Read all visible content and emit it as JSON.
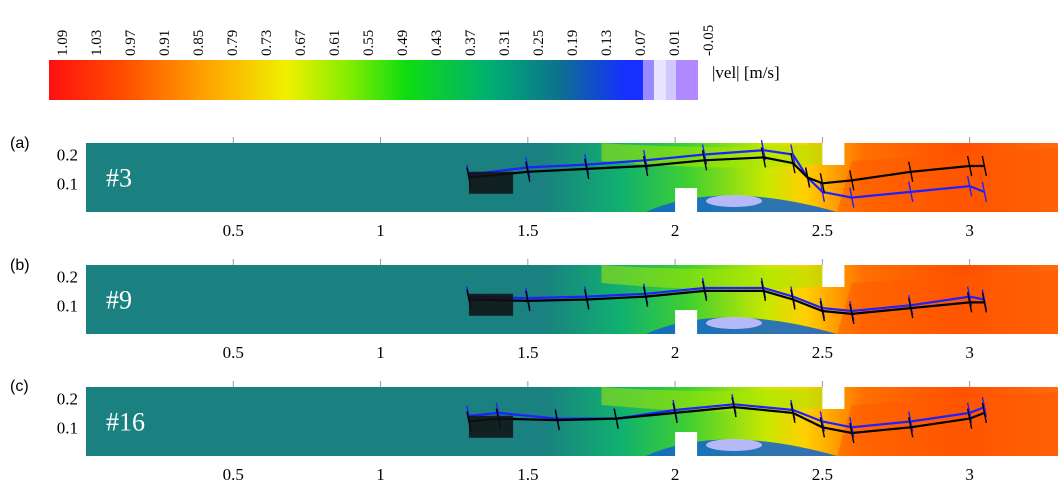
{
  "colorbar": {
    "ticks": [
      "1.09",
      "1.03",
      "0.97",
      "0.91",
      "0.85",
      "0.79",
      "0.73",
      "0.67",
      "0.61",
      "0.55",
      "0.49",
      "0.43",
      "0.37",
      "0.31",
      "0.25",
      "0.19",
      "0.13",
      "0.07",
      "0.01",
      "-0.05"
    ],
    "label": "|vel| [m/s]"
  },
  "chart_data": [
    {
      "type": "heatmap",
      "panel": "(a)",
      "case": "#3",
      "x_ticks": [
        "0.5",
        "1",
        "1.5",
        "2",
        "2.5",
        "3"
      ],
      "y_ticks": [
        "0.2",
        "0.1"
      ],
      "xlim": [
        0,
        3.3
      ],
      "ylim": [
        0,
        0.24
      ],
      "series": [
        {
          "x": [
            1.3,
            1.5,
            1.7,
            1.9,
            2.1,
            2.3,
            2.4,
            2.45,
            2.5,
            2.6,
            2.8,
            3.0,
            3.05
          ],
          "y": [
            0.13,
            0.155,
            0.165,
            0.18,
            0.2,
            0.215,
            0.2,
            0.12,
            0.07,
            0.05,
            0.07,
            0.09,
            0.07
          ]
        },
        {
          "x": [
            1.3,
            1.5,
            1.7,
            1.9,
            2.1,
            2.3,
            2.4,
            2.45,
            2.5,
            2.6,
            2.8,
            3.0,
            3.05
          ],
          "y": [
            0.12,
            0.14,
            0.15,
            0.16,
            0.18,
            0.19,
            0.17,
            0.12,
            0.1,
            0.11,
            0.14,
            0.16,
            0.16
          ]
        }
      ]
    },
    {
      "type": "heatmap",
      "panel": "(b)",
      "case": "#9",
      "x_ticks": [
        "0.5",
        "1",
        "1.5",
        "2",
        "2.5",
        "3"
      ],
      "y_ticks": [
        "0.2",
        "0.1"
      ],
      "xlim": [
        0,
        3.3
      ],
      "ylim": [
        0,
        0.24
      ],
      "series": [
        {
          "x": [
            1.3,
            1.5,
            1.7,
            1.9,
            2.1,
            2.3,
            2.4,
            2.5,
            2.6,
            2.8,
            3.0,
            3.05
          ],
          "y": [
            0.13,
            0.125,
            0.13,
            0.14,
            0.16,
            0.16,
            0.13,
            0.09,
            0.08,
            0.1,
            0.13,
            0.12
          ]
        },
        {
          "x": [
            1.3,
            1.5,
            1.7,
            1.9,
            2.1,
            2.3,
            2.4,
            2.5,
            2.6,
            2.8,
            3.0,
            3.05
          ],
          "y": [
            0.12,
            0.115,
            0.12,
            0.13,
            0.15,
            0.15,
            0.12,
            0.08,
            0.07,
            0.09,
            0.11,
            0.11
          ]
        }
      ]
    },
    {
      "type": "heatmap",
      "panel": "(c)",
      "case": "#16",
      "x_ticks": [
        "0.5",
        "1",
        "1.5",
        "2",
        "2.5",
        "3"
      ],
      "y_ticks": [
        "0.2",
        "0.1"
      ],
      "xlim": [
        0,
        3.3
      ],
      "ylim": [
        0,
        0.24
      ],
      "series": [
        {
          "x": [
            1.3,
            1.4,
            1.6,
            1.8,
            2.0,
            2.2,
            2.4,
            2.5,
            2.6,
            2.8,
            3.0,
            3.05
          ],
          "y": [
            0.14,
            0.15,
            0.13,
            0.13,
            0.16,
            0.18,
            0.16,
            0.12,
            0.1,
            0.12,
            0.15,
            0.17
          ]
        },
        {
          "x": [
            1.3,
            1.4,
            1.6,
            1.8,
            2.0,
            2.2,
            2.4,
            2.5,
            2.6,
            2.8,
            3.0,
            3.05
          ],
          "y": [
            0.12,
            0.13,
            0.125,
            0.13,
            0.15,
            0.17,
            0.15,
            0.1,
            0.08,
            0.1,
            0.13,
            0.15
          ]
        }
      ]
    }
  ]
}
